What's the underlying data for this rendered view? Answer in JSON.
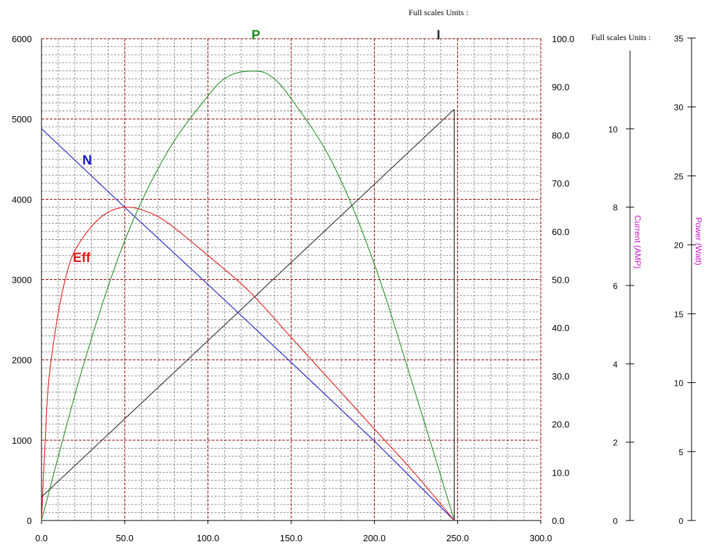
{
  "headers": {
    "top": "Full scales Units :",
    "right": "Full scales Units :"
  },
  "colors": {
    "N": "#1414c8",
    "Eff": "#e01414",
    "P": "#1e8c1e",
    "I": "#282828",
    "axis_title": "#c814c8",
    "grid_major": "#8b0000",
    "grid_minor": "#787878"
  },
  "chart_data": {
    "type": "line",
    "x_axis": {
      "min": 0,
      "max": 300,
      "ticks": [
        0,
        50,
        100,
        150,
        200,
        250,
        300
      ],
      "tick_labels": [
        "0.0",
        "50.0",
        "100.0",
        "150.0",
        "200.0",
        "250.0",
        "300.0"
      ]
    },
    "y_axis_left": {
      "min": 0,
      "max": 6000,
      "ticks": [
        0,
        1000,
        2000,
        3000,
        4000,
        5000,
        6000
      ],
      "tick_labels": [
        "0",
        "1000",
        "2000",
        "3000",
        "4000",
        "5000",
        "6000"
      ]
    },
    "y_axis_right": {
      "min": 0,
      "max": 100,
      "ticks": [
        0,
        10,
        20,
        30,
        40,
        50,
        60,
        70,
        80,
        90,
        100
      ],
      "tick_labels": [
        "0.0",
        "10.0",
        "20.0",
        "30.0",
        "40.0",
        "50.0",
        "60.0",
        "70.0",
        "80.0",
        "90.0",
        "100.0"
      ]
    },
    "current_axis": {
      "title": "Current (AMP)",
      "min": 0,
      "max": 12,
      "ticks": [
        0,
        2,
        4,
        6,
        8,
        10
      ],
      "tick_labels": [
        "0",
        "2",
        "4",
        "6",
        "8",
        "10"
      ]
    },
    "power_axis": {
      "title": "Power (Watt)",
      "min": 0,
      "max": 35,
      "ticks": [
        0,
        5,
        10,
        15,
        20,
        25,
        30,
        35
      ],
      "tick_labels": [
        "0",
        "5",
        "10",
        "15",
        "20",
        "25",
        "30",
        "35"
      ]
    },
    "grid": true,
    "series": [
      {
        "name": "N",
        "axis": "left",
        "points": [
          [
            0,
            4880
          ],
          [
            50,
            3900
          ],
          [
            100,
            2940
          ],
          [
            150,
            1970
          ],
          [
            200,
            990
          ],
          [
            248,
            0
          ]
        ]
      },
      {
        "name": "Eff",
        "axis": "right",
        "points": [
          [
            0,
            0
          ],
          [
            3,
            22
          ],
          [
            5,
            31
          ],
          [
            10,
            43
          ],
          [
            15,
            51
          ],
          [
            20,
            56
          ],
          [
            30,
            61
          ],
          [
            40,
            64
          ],
          [
            50,
            65
          ],
          [
            60,
            64.5
          ],
          [
            75,
            62
          ],
          [
            100,
            55
          ],
          [
            125,
            47.5
          ],
          [
            150,
            38
          ],
          [
            175,
            28.5
          ],
          [
            200,
            19
          ],
          [
            225,
            9.5
          ],
          [
            248,
            0
          ]
        ]
      },
      {
        "name": "P",
        "axis": "power",
        "points": [
          [
            0,
            0
          ],
          [
            25,
            11.2
          ],
          [
            50,
            20.3
          ],
          [
            75,
            26.6
          ],
          [
            100,
            30.8
          ],
          [
            112,
            32.2
          ],
          [
            125,
            32.6
          ],
          [
            137,
            32.3
          ],
          [
            150,
            30.6
          ],
          [
            175,
            25.9
          ],
          [
            200,
            18.6
          ],
          [
            225,
            9.1
          ],
          [
            248,
            0
          ]
        ]
      },
      {
        "name": "I",
        "axis": "current",
        "points": [
          [
            0,
            0.6
          ],
          [
            248,
            10.5
          ]
        ]
      }
    ]
  }
}
